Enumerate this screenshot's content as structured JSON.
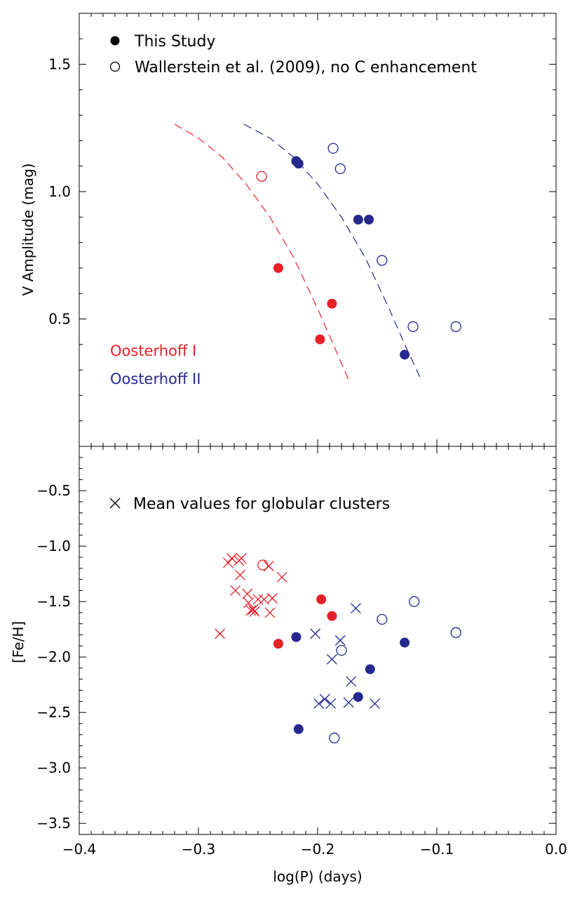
{
  "colors": {
    "axis": "#000000",
    "oosterhoff_1": "#e8202a",
    "oosterhoff_2": "#26288f"
  },
  "chart_data": [
    {
      "type": "scatter",
      "panel": "top",
      "xlim": [
        -0.4,
        0.0
      ],
      "ylim": [
        0.0,
        1.7
      ],
      "ylabel": "V Amplitude (mag)",
      "y_ticks": [
        0.5,
        1.0,
        1.5
      ],
      "y_tick_labels": [
        "0.5",
        "1.0",
        "1.5"
      ],
      "legend": {
        "placement": "top-left",
        "entries": [
          {
            "marker": "filled-circle",
            "label": "This Study"
          },
          {
            "marker": "open-circle",
            "label": "Wallerstein et al. (2009), no C enhancement"
          }
        ]
      },
      "annotations": [
        {
          "text": "Oosterhoff I",
          "color": "oosterhoff_1"
        },
        {
          "text": "Oosterhoff II",
          "color": "oosterhoff_2"
        }
      ],
      "series": [
        {
          "group": "oosterhoff_1",
          "marker": "filled-circle",
          "x": [
            -0.233,
            -0.188,
            -0.198
          ],
          "y": [
            0.7,
            0.56,
            0.42
          ]
        },
        {
          "group": "oosterhoff_1",
          "marker": "open-circle",
          "x": [
            -0.247
          ],
          "y": [
            1.06
          ]
        },
        {
          "group": "oosterhoff_2",
          "marker": "filled-circle",
          "x": [
            -0.218,
            -0.216,
            -0.166,
            -0.157,
            -0.127
          ],
          "y": [
            1.12,
            1.11,
            0.89,
            0.89,
            0.36
          ]
        },
        {
          "group": "oosterhoff_2",
          "marker": "open-circle",
          "x": [
            -0.187,
            -0.181,
            -0.146,
            -0.12,
            -0.084
          ],
          "y": [
            1.17,
            1.09,
            0.73,
            0.47,
            0.47
          ]
        }
      ],
      "curves": [
        {
          "group": "oosterhoff_1",
          "style": "dashed",
          "x": [
            -0.32,
            -0.3,
            -0.28,
            -0.26,
            -0.24,
            -0.22,
            -0.2,
            -0.185,
            -0.174
          ],
          "y": [
            1.265,
            1.21,
            1.135,
            1.03,
            0.9,
            0.74,
            0.54,
            0.38,
            0.26
          ]
        },
        {
          "group": "oosterhoff_2",
          "style": "dashed",
          "x": [
            -0.262,
            -0.24,
            -0.22,
            -0.2,
            -0.18,
            -0.16,
            -0.14,
            -0.125,
            -0.113
          ],
          "y": [
            1.265,
            1.21,
            1.135,
            1.03,
            0.9,
            0.74,
            0.54,
            0.38,
            0.26
          ]
        }
      ]
    },
    {
      "type": "scatter",
      "panel": "bottom",
      "xlim": [
        -0.4,
        0.0
      ],
      "ylim": [
        -3.6,
        -0.1
      ],
      "xlabel": "log(P) (days)",
      "ylabel": "[Fe/H]",
      "x_ticks": [
        -0.4,
        -0.3,
        -0.2,
        -0.1,
        0.0
      ],
      "x_tick_labels": [
        "−0.4",
        "−0.3",
        "−0.2",
        "−0.1",
        "0.0"
      ],
      "y_ticks": [
        -0.5,
        -1.0,
        -1.5,
        -2.0,
        -2.5,
        -3.0,
        -3.5
      ],
      "y_tick_labels": [
        "−0.5",
        "−1.0",
        "−1.5",
        "−2.0",
        "−2.5",
        "−3.0",
        "−3.5"
      ],
      "legend": {
        "placement": "top-left",
        "entries": [
          {
            "marker": "cross",
            "label": "Mean values for globular clusters"
          }
        ]
      },
      "series": [
        {
          "group": "oosterhoff_1",
          "marker": "cross",
          "x": [
            -0.282,
            -0.275,
            -0.272,
            -0.269,
            -0.266,
            -0.264,
            -0.265,
            -0.272,
            -0.259,
            -0.258,
            -0.256,
            -0.254,
            -0.253,
            -0.25,
            -0.245,
            -0.241,
            -0.24,
            -0.238,
            -0.238,
            -0.23
          ],
          "y": [
            -1.79,
            -1.15,
            -1.11,
            -1.4,
            -1.13,
            -1.11,
            -1.26,
            -1.11,
            -1.43,
            -1.51,
            -1.58,
            -1.57,
            -1.59,
            -1.48,
            -1.48,
            -1.18,
            -1.6,
            -1.47,
            -1.47,
            -1.28
          ]
        },
        {
          "group": "oosterhoff_1",
          "marker": "filled-circle",
          "x": [
            -0.233,
            -0.197,
            -0.188
          ],
          "y": [
            -1.88,
            -1.48,
            -1.63
          ]
        },
        {
          "group": "oosterhoff_1",
          "marker": "open-circle",
          "x": [
            -0.246
          ],
          "y": [
            -1.17
          ]
        },
        {
          "group": "oosterhoff_2",
          "marker": "cross",
          "x": [
            -0.202,
            -0.199,
            -0.194,
            -0.189,
            -0.188,
            -0.181,
            -0.174,
            -0.172,
            -0.168,
            -0.152
          ],
          "y": [
            -1.79,
            -2.42,
            -2.38,
            -2.42,
            -2.02,
            -1.85,
            -2.41,
            -2.22,
            -1.56,
            -2.42
          ]
        },
        {
          "group": "oosterhoff_2",
          "marker": "filled-circle",
          "x": [
            -0.218,
            -0.216,
            -0.166,
            -0.156,
            -0.127
          ],
          "y": [
            -1.82,
            -2.65,
            -2.36,
            -2.11,
            -1.87
          ]
        },
        {
          "group": "oosterhoff_2",
          "marker": "open-circle",
          "x": [
            -0.186,
            -0.18,
            -0.146,
            -0.119,
            -0.084
          ],
          "y": [
            -2.73,
            -1.94,
            -1.66,
            -1.5,
            -1.78
          ]
        }
      ]
    }
  ]
}
